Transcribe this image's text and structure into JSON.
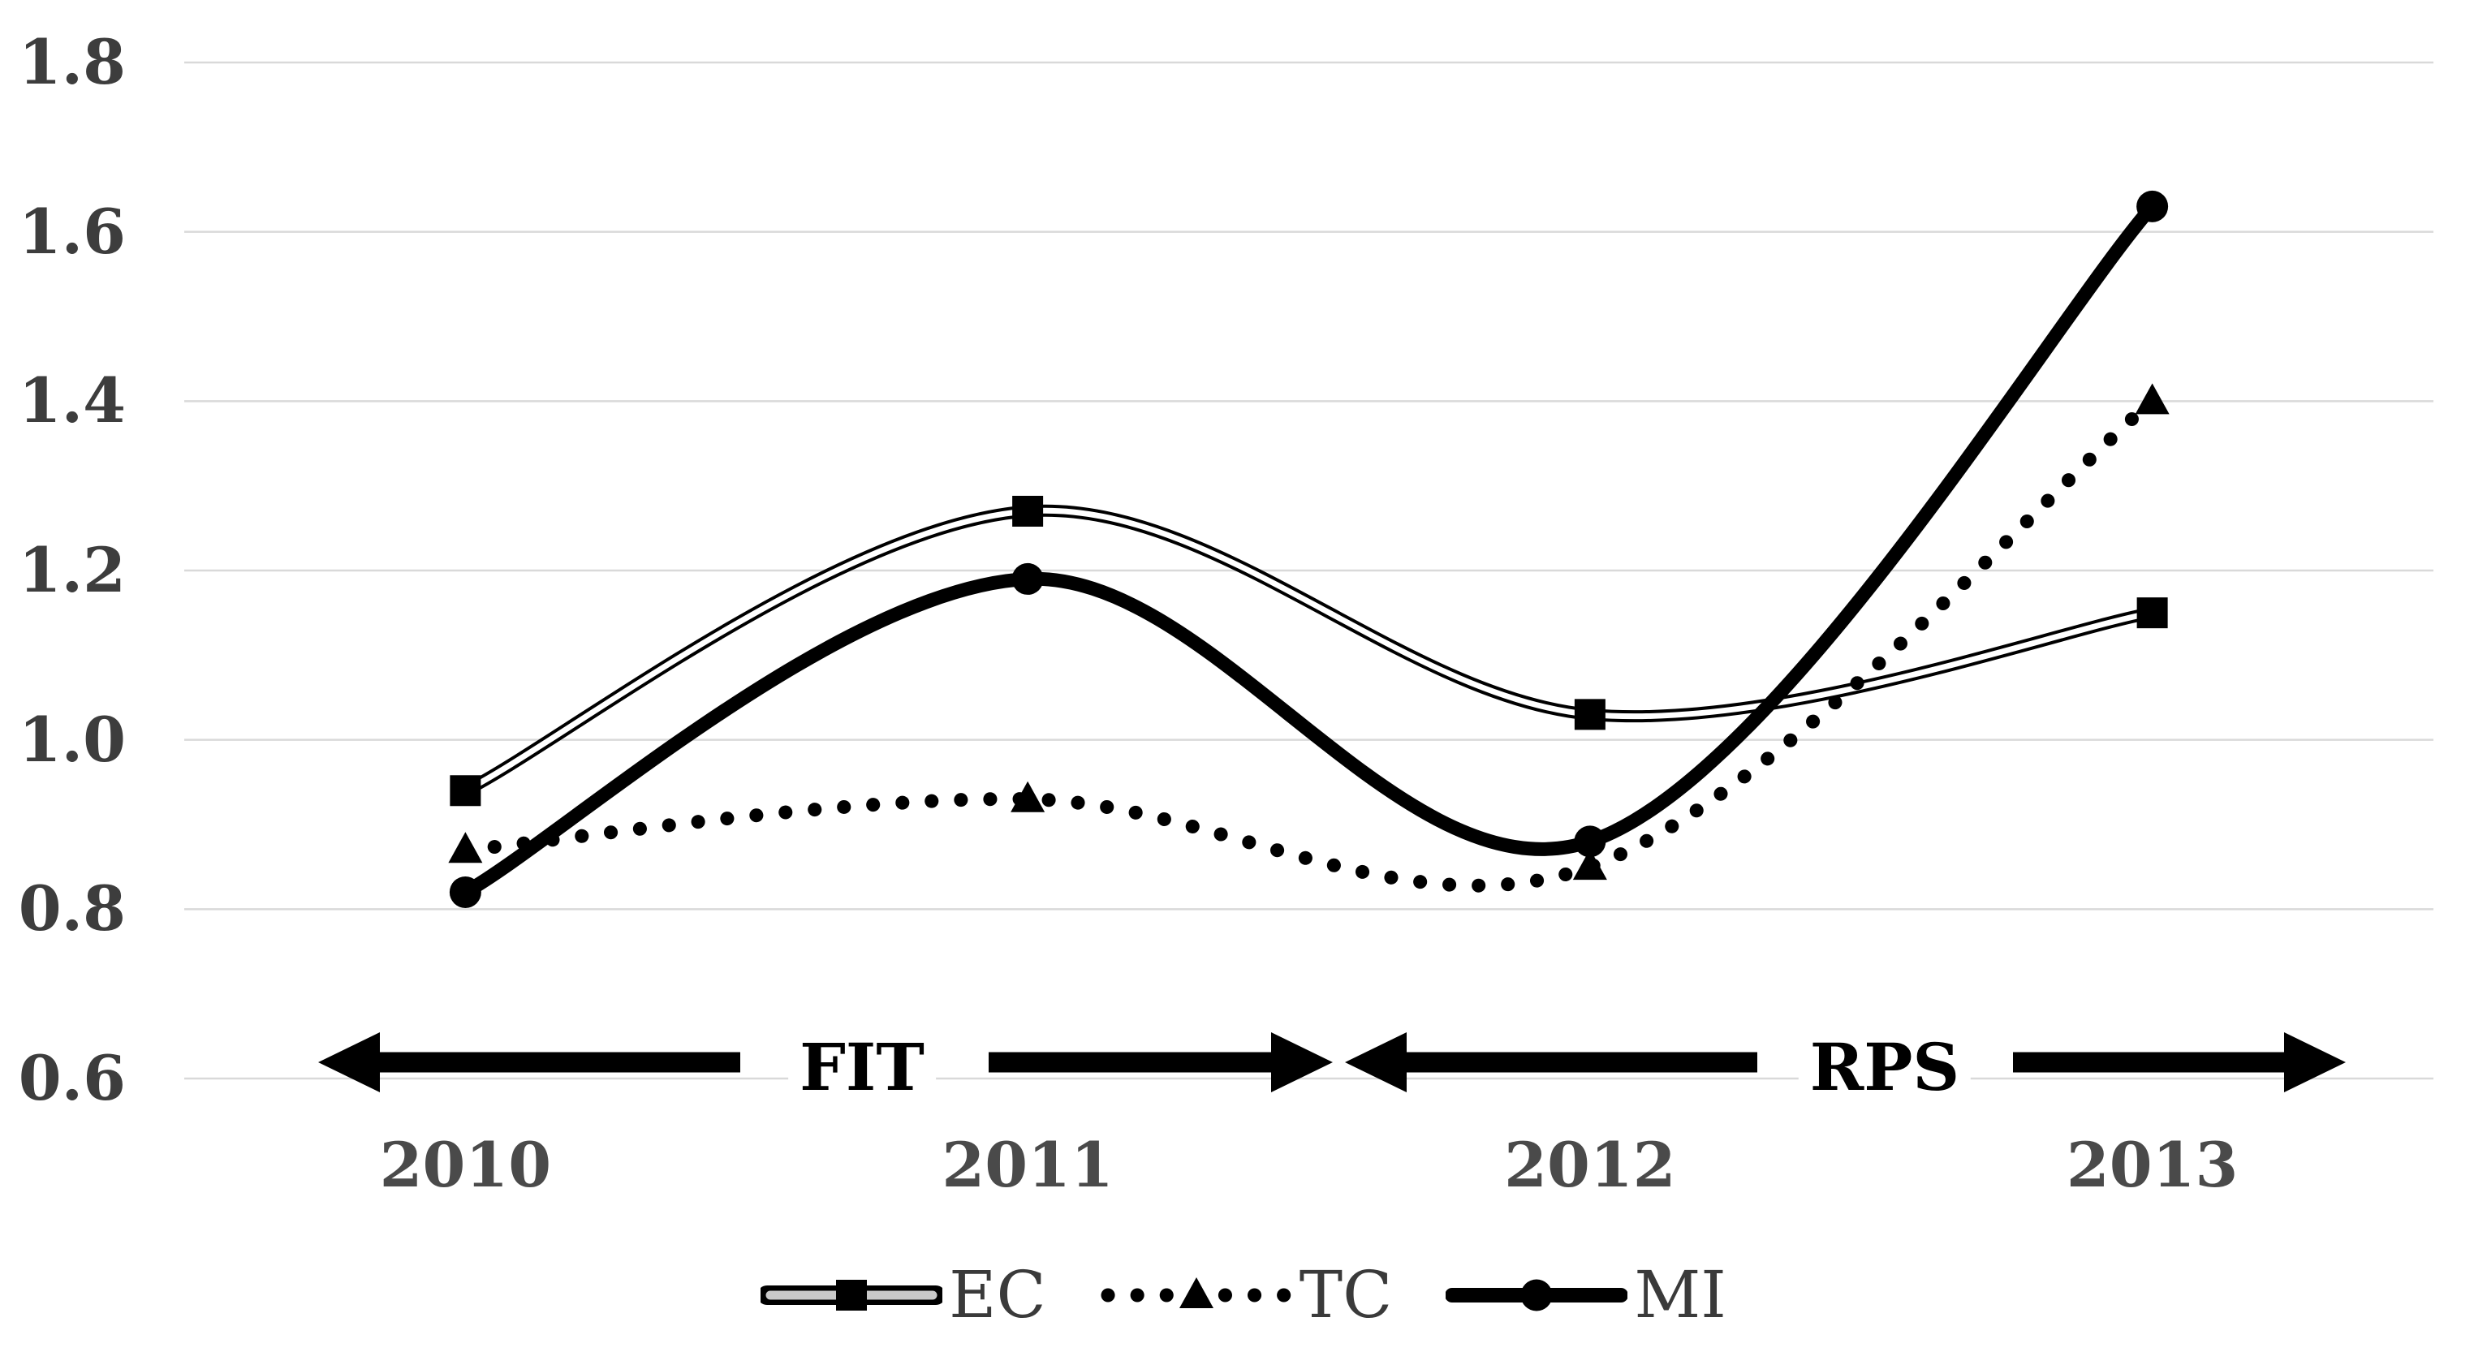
{
  "chart_data": {
    "type": "line",
    "title": "",
    "xlabel": "",
    "ylabel": "",
    "categories": [
      "2010",
      "2011",
      "2012",
      "2013"
    ],
    "series": [
      {
        "name": "EC",
        "marker": "square",
        "line_style": "double-line",
        "values": [
          0.94,
          1.27,
          1.03,
          1.15
        ]
      },
      {
        "name": "TC",
        "marker": "triangle",
        "line_style": "dotted",
        "values": [
          0.87,
          0.93,
          0.85,
          1.4
        ]
      },
      {
        "name": "MI",
        "marker": "circle",
        "line_style": "solid-thick",
        "values": [
          0.82,
          1.19,
          0.88,
          1.63
        ]
      }
    ],
    "ylim": [
      0.6,
      1.8
    ],
    "ytick_labels": [
      "1.8",
      "1.6",
      "1.4",
      "1.2",
      "1.0",
      "0.8",
      "0.6"
    ],
    "ytick_values": [
      1.8,
      1.6,
      1.4,
      1.2,
      1.0,
      0.8,
      0.6
    ],
    "grid": "horizontal",
    "line_smoothing": true,
    "legend_position": "bottom",
    "annotations": [
      {
        "label": "FIT",
        "label_x": 1062,
        "arrow_y": 1309,
        "arrows": [
          {
            "tail_x": 912,
            "tip_x": 392,
            "direction": "left"
          },
          {
            "tail_x": 1218,
            "tip_x": 1642,
            "direction": "right"
          }
        ]
      },
      {
        "label": "RPS",
        "label_x": 2322,
        "arrow_y": 1309,
        "arrows": [
          {
            "tail_x": 2165,
            "tip_x": 1657,
            "direction": "left"
          },
          {
            "tail_x": 2480,
            "tip_x": 2890,
            "direction": "right"
          }
        ]
      }
    ],
    "colors": {
      "series": "#000000",
      "gridline": "#d9d9d9",
      "tick_text": "#3d3d3d",
      "category_text": "#4a4a4a",
      "legend_text": "#3a3a3a",
      "annotation_text": "#000000",
      "background": "#ffffff"
    }
  }
}
